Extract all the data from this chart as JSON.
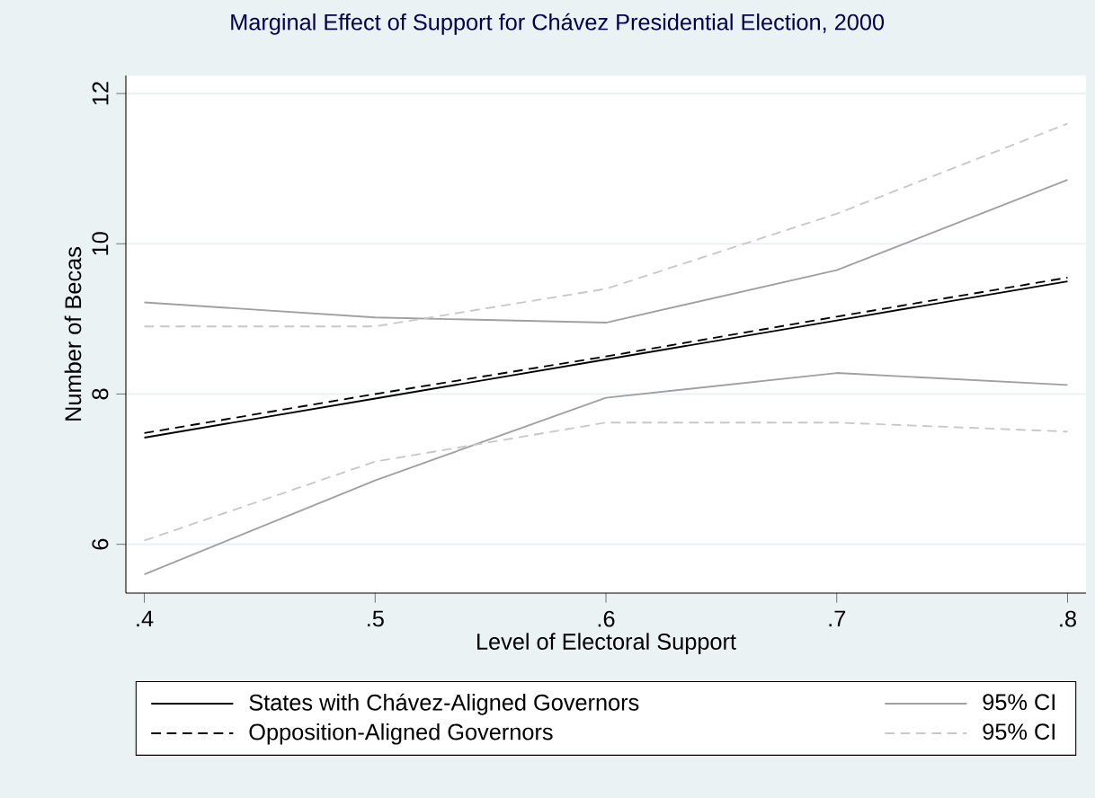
{
  "chart_data": {
    "type": "line",
    "title": "Marginal Effect of Support for Chávez Presidential Election, 2000",
    "xlabel": "Level of Electoral Support",
    "ylabel": "Number of Becas",
    "x": [
      0.4,
      0.5,
      0.6,
      0.7,
      0.8
    ],
    "series": [
      {
        "name": "States with Chávez-Aligned Governors",
        "color": "#000000",
        "line_style": "solid",
        "values": [
          7.42,
          7.94,
          8.46,
          8.98,
          9.5
        ]
      },
      {
        "name": "95% CI",
        "color": "#a0a0a0",
        "line_style": "solid",
        "values": [
          9.22,
          9.02,
          8.95,
          9.65,
          10.85
        ]
      },
      {
        "name": "Opposition-Aligned Governors",
        "color": "#000000",
        "line_style": "dashed",
        "values": [
          7.48,
          8.0,
          8.5,
          9.03,
          9.55
        ]
      },
      {
        "name": "95% CI",
        "color": "#c8c8c8",
        "line_style": "dashed",
        "values": [
          8.9,
          8.9,
          9.4,
          10.4,
          11.6
        ]
      },
      {
        "color": "#a0a0a0",
        "line_style": "solid",
        "values": [
          5.6,
          6.85,
          7.95,
          8.28,
          8.12
        ]
      },
      {
        "color": "#c8c8c8",
        "line_style": "dashed",
        "values": [
          6.05,
          7.1,
          7.62,
          7.62,
          7.5
        ]
      }
    ],
    "xlim": [
      0.392,
      0.808
    ],
    "ylim": [
      5.35,
      12.24
    ],
    "xticks": [
      {
        "value": 0.4,
        "label": ".4"
      },
      {
        "value": 0.5,
        "label": ".5"
      },
      {
        "value": 0.6,
        "label": ".6"
      },
      {
        "value": 0.7,
        "label": ".7"
      },
      {
        "value": 0.8,
        "label": ".8"
      }
    ],
    "yticks": [
      6,
      8,
      10,
      12
    ],
    "grid": "y",
    "legend": "bottom"
  }
}
